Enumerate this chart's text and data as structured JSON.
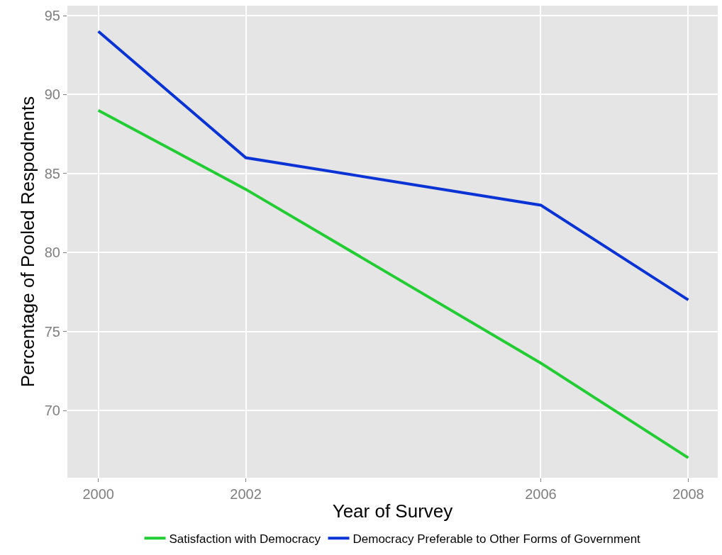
{
  "chart_data": {
    "type": "line",
    "xlabel": "Year of Survey",
    "ylabel": "Percentage of Pooled Respodnents",
    "x": [
      2000,
      2002,
      2006,
      2008
    ],
    "series": [
      {
        "name": "Satisfaction with Democracy",
        "color": "#22cc33",
        "values": [
          89,
          84,
          73,
          67
        ]
      },
      {
        "name": "Democracy Preferable to Other Forms of Government",
        "color": "#0a33d6",
        "values": [
          94,
          86,
          83,
          77
        ]
      }
    ],
    "xlim": [
      1999.58,
      2008.4
    ],
    "xticks": [
      2000,
      2002,
      2006,
      2008
    ],
    "ylim": [
      65.74,
      95.63
    ],
    "yticks": [
      70,
      75,
      80,
      85,
      90,
      95
    ],
    "grid": true,
    "legend": "bottom",
    "line_style": "solid",
    "marker": "none"
  }
}
